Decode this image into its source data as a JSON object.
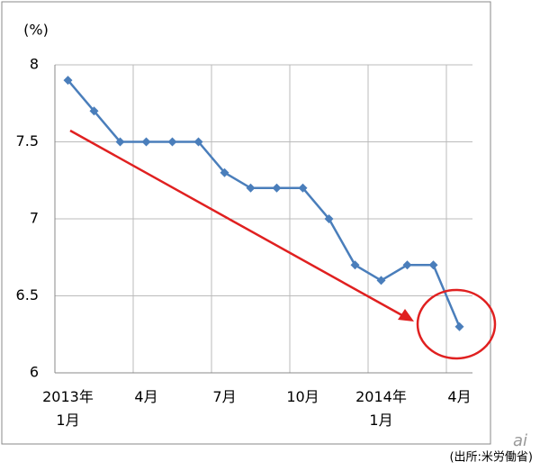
{
  "chart_data": {
    "type": "line",
    "y_label": "(%)",
    "categories": [
      "2013年\n1月",
      null,
      null,
      "4月",
      null,
      null,
      "7月",
      null,
      null,
      "10月",
      null,
      null,
      "2014年\n1月",
      null,
      null,
      "4月"
    ],
    "series": [
      {
        "color": "#4a7ebb",
        "values": [
          7.9,
          7.7,
          7.5,
          7.5,
          7.5,
          7.5,
          7.3,
          7.2,
          7.2,
          7.2,
          7.0,
          6.7,
          6.6,
          6.7,
          6.7,
          6.3
        ]
      }
    ],
    "ylim": [
      6,
      8
    ],
    "yticks": [
      6,
      6.5,
      7,
      7.5,
      8
    ],
    "grid": true,
    "source": "(出所:米労働省)",
    "logo": "ai"
  }
}
